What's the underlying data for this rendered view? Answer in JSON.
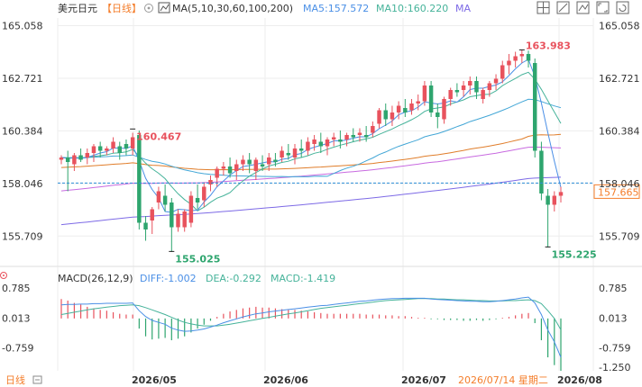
{
  "header": {
    "pair": "美元日元",
    "period": "【日线】",
    "ma_label": "MA(5,10,30,60,100,200)",
    "ma5": "MA5:157.572",
    "ma10": "MA10:160.220",
    "ma_more": "MA"
  },
  "macd_header": {
    "label": "MACD(26,12,9)",
    "diff": "DIFF:-1.002",
    "dea": "DEA:-0.292",
    "macd": "MACD:-1.419"
  },
  "footer": {
    "period_button": "日线",
    "x_labels": [
      "2026/05",
      "2026/06",
      "2026/07",
      "2026/08"
    ],
    "cursor_date": "2026/07/14 星期二"
  },
  "colors": {
    "up": "#e8525d",
    "down": "#2ea56e",
    "ma5": "#4a8fe6",
    "ma10": "#46b39a",
    "ma30": "#42a6d6",
    "ma60": "#e07d2a",
    "ma100": "#c86ae0",
    "ma200": "#7d6ae6",
    "grid": "#eeeeee",
    "last_price": "#2b8ed9",
    "price_tag": "#f47d2a"
  },
  "chart_data": [
    {
      "type": "candlestick",
      "title": "美元日元【日线】",
      "ylim": [
        154.6,
        165.4
      ],
      "y_ticks": [
        "165.058",
        "162.721",
        "160.384",
        "158.046",
        "155.709"
      ],
      "last_price": "157.665",
      "annotations": {
        "high_1": "160.467",
        "low_1": "155.025",
        "high_2": "163.983",
        "low_2": "155.225"
      },
      "candles": [
        [
          159.1,
          159.3,
          158.9,
          159.2
        ],
        [
          159.2,
          159.5,
          157.7,
          159.0
        ],
        [
          158.9,
          159.4,
          158.6,
          159.3
        ],
        [
          159.3,
          159.6,
          159.0,
          159.1
        ],
        [
          159.2,
          159.6,
          158.9,
          159.4
        ],
        [
          159.4,
          159.8,
          159.0,
          159.7
        ],
        [
          159.7,
          159.9,
          159.2,
          159.5
        ],
        [
          159.5,
          159.7,
          159.3,
          159.6
        ],
        [
          159.6,
          160.1,
          159.4,
          159.9
        ],
        [
          159.7,
          159.9,
          159.1,
          159.4
        ],
        [
          159.8,
          160.0,
          159.3,
          159.6
        ],
        [
          159.6,
          160.3,
          159.3,
          160.1
        ],
        [
          160.2,
          160.4,
          156.0,
          156.3
        ],
        [
          156.3,
          156.6,
          155.5,
          156.0
        ],
        [
          156.4,
          157.0,
          155.8,
          156.9
        ],
        [
          157.2,
          157.9,
          156.9,
          157.7
        ],
        [
          157.5,
          158.0,
          156.8,
          157.1
        ],
        [
          157.2,
          157.4,
          155.0,
          156.1
        ],
        [
          156.1,
          156.9,
          155.9,
          156.7
        ],
        [
          156.1,
          156.9,
          155.9,
          156.8
        ],
        [
          156.3,
          157.7,
          156.1,
          157.5
        ],
        [
          157.4,
          158.0,
          156.9,
          157.2
        ],
        [
          157.3,
          158.1,
          157.0,
          157.9
        ],
        [
          158.0,
          158.4,
          157.7,
          158.2
        ],
        [
          158.3,
          158.8,
          157.9,
          158.7
        ],
        [
          158.7,
          159.0,
          158.4,
          158.8
        ],
        [
          158.8,
          159.2,
          158.3,
          158.5
        ],
        [
          158.6,
          159.1,
          158.2,
          158.9
        ],
        [
          158.9,
          159.3,
          158.6,
          159.1
        ],
        [
          159.1,
          159.4,
          158.5,
          158.9
        ],
        [
          158.6,
          159.2,
          158.2,
          159.1
        ],
        [
          158.9,
          159.3,
          158.6,
          158.8
        ],
        [
          158.9,
          159.4,
          158.6,
          159.2
        ],
        [
          159.1,
          159.4,
          158.8,
          159.0
        ],
        [
          159.2,
          159.7,
          159.0,
          159.5
        ],
        [
          159.4,
          159.8,
          159.1,
          159.3
        ],
        [
          159.2,
          159.8,
          158.9,
          159.6
        ],
        [
          159.6,
          160.0,
          159.2,
          159.5
        ],
        [
          159.5,
          160.1,
          159.3,
          159.9
        ],
        [
          159.8,
          160.2,
          159.5,
          160.0
        ],
        [
          159.9,
          160.3,
          159.4,
          159.7
        ],
        [
          159.7,
          160.1,
          159.3,
          160.0
        ],
        [
          160.0,
          160.3,
          159.7,
          160.1
        ],
        [
          160.0,
          160.4,
          159.6,
          159.9
        ],
        [
          160.0,
          160.3,
          159.7,
          160.2
        ],
        [
          160.2,
          160.5,
          159.9,
          160.1
        ],
        [
          160.2,
          160.5,
          159.9,
          160.3
        ],
        [
          160.2,
          160.6,
          159.9,
          160.1
        ],
        [
          160.3,
          160.8,
          160.1,
          160.6
        ],
        [
          160.7,
          161.4,
          160.5,
          161.3
        ],
        [
          161.3,
          161.6,
          160.6,
          160.9
        ],
        [
          160.9,
          161.5,
          160.6,
          161.2
        ],
        [
          161.2,
          161.7,
          160.9,
          161.5
        ],
        [
          161.4,
          161.8,
          161.0,
          161.2
        ],
        [
          161.3,
          161.8,
          161.1,
          161.6
        ],
        [
          161.6,
          162.0,
          161.3,
          161.7
        ],
        [
          161.7,
          162.6,
          161.5,
          162.4
        ],
        [
          162.4,
          162.6,
          161.0,
          161.2
        ],
        [
          161.2,
          161.6,
          160.5,
          161.0
        ],
        [
          160.9,
          161.9,
          160.7,
          161.8
        ],
        [
          161.8,
          162.3,
          161.5,
          162.2
        ],
        [
          162.2,
          162.5,
          161.9,
          162.1
        ],
        [
          162.2,
          162.6,
          161.9,
          162.4
        ],
        [
          162.4,
          162.8,
          162.0,
          162.6
        ],
        [
          162.6,
          162.8,
          161.8,
          162.1
        ],
        [
          161.8,
          162.3,
          161.6,
          162.2
        ],
        [
          162.2,
          162.6,
          161.9,
          162.5
        ],
        [
          162.5,
          162.9,
          162.2,
          162.7
        ],
        [
          162.7,
          163.5,
          162.5,
          163.3
        ],
        [
          163.3,
          163.8,
          162.9,
          163.5
        ],
        [
          163.5,
          163.9,
          163.2,
          163.7
        ],
        [
          163.7,
          163.98,
          163.4,
          163.8
        ],
        [
          163.8,
          163.95,
          163.2,
          163.5
        ],
        [
          163.4,
          163.6,
          159.2,
          159.5
        ],
        [
          159.5,
          159.9,
          157.3,
          157.6
        ],
        [
          157.5,
          157.8,
          155.2,
          157.1
        ],
        [
          157.1,
          157.7,
          156.8,
          157.5
        ],
        [
          157.5,
          157.9,
          157.2,
          157.665
        ]
      ]
    },
    {
      "type": "bar+line",
      "title": "MACD(26,12,9)",
      "ylim": [
        -1.3,
        0.83
      ],
      "y_ticks": [
        "0.785",
        "0.013",
        "-0.759",
        "-1.250"
      ],
      "series": [
        {
          "name": "DIFF",
          "values": [
            0.35,
            0.36,
            0.36,
            0.37,
            0.37,
            0.38,
            0.38,
            0.39,
            0.39,
            0.39,
            0.39,
            0.4,
            0.2,
            0.05,
            -0.05,
            -0.1,
            -0.15,
            -0.25,
            -0.3,
            -0.33,
            -0.32,
            -0.3,
            -0.27,
            -0.22,
            -0.17,
            -0.11,
            -0.06,
            -0.01,
            0.04,
            0.08,
            0.12,
            0.14,
            0.17,
            0.19,
            0.21,
            0.23,
            0.25,
            0.27,
            0.29,
            0.31,
            0.33,
            0.34,
            0.36,
            0.38,
            0.4,
            0.42,
            0.44,
            0.45,
            0.47,
            0.49,
            0.5,
            0.51,
            0.51,
            0.52,
            0.52,
            0.52,
            0.52,
            0.5,
            0.49,
            0.48,
            0.47,
            0.46,
            0.45,
            0.44,
            0.44,
            0.43,
            0.43,
            0.44,
            0.46,
            0.48,
            0.5,
            0.53,
            0.55,
            0.4,
            0.1,
            -0.3,
            -0.6,
            -1.0
          ]
        },
        {
          "name": "DEA",
          "values": [
            0.1,
            0.13,
            0.16,
            0.19,
            0.22,
            0.25,
            0.27,
            0.29,
            0.31,
            0.33,
            0.34,
            0.35,
            0.33,
            0.28,
            0.22,
            0.16,
            0.1,
            0.03,
            -0.04,
            -0.1,
            -0.14,
            -0.17,
            -0.19,
            -0.19,
            -0.19,
            -0.17,
            -0.15,
            -0.12,
            -0.09,
            -0.06,
            -0.03,
            0.0,
            0.03,
            0.06,
            0.09,
            0.12,
            0.14,
            0.17,
            0.2,
            0.23,
            0.26,
            0.28,
            0.3,
            0.32,
            0.34,
            0.36,
            0.38,
            0.4,
            0.42,
            0.44,
            0.46,
            0.47,
            0.48,
            0.49,
            0.5,
            0.51,
            0.51,
            0.51,
            0.5,
            0.5,
            0.49,
            0.48,
            0.48,
            0.47,
            0.46,
            0.46,
            0.45,
            0.45,
            0.45,
            0.46,
            0.46,
            0.47,
            0.48,
            0.46,
            0.38,
            0.2,
            0.0,
            -0.29
          ]
        },
        {
          "name": "MACD",
          "values": [
            0.5,
            0.46,
            0.4,
            0.36,
            0.3,
            0.26,
            0.22,
            0.2,
            0.16,
            0.12,
            0.1,
            0.1,
            -0.26,
            -0.46,
            -0.54,
            -0.52,
            -0.5,
            -0.56,
            -0.52,
            -0.46,
            -0.36,
            -0.26,
            -0.16,
            -0.06,
            0.04,
            0.12,
            0.18,
            0.22,
            0.26,
            0.28,
            0.3,
            0.28,
            0.28,
            0.26,
            0.24,
            0.22,
            0.22,
            0.2,
            0.18,
            0.16,
            0.14,
            0.12,
            0.12,
            0.12,
            0.12,
            0.12,
            0.12,
            0.1,
            0.1,
            0.1,
            0.08,
            0.08,
            0.06,
            0.06,
            0.04,
            0.02,
            0.02,
            -0.02,
            -0.02,
            -0.04,
            -0.04,
            -0.04,
            -0.06,
            -0.06,
            -0.04,
            -0.06,
            -0.04,
            -0.02,
            0.02,
            0.04,
            0.08,
            0.12,
            0.14,
            -0.12,
            -0.56,
            -1.0,
            -1.2,
            -1.42
          ]
        }
      ]
    }
  ]
}
